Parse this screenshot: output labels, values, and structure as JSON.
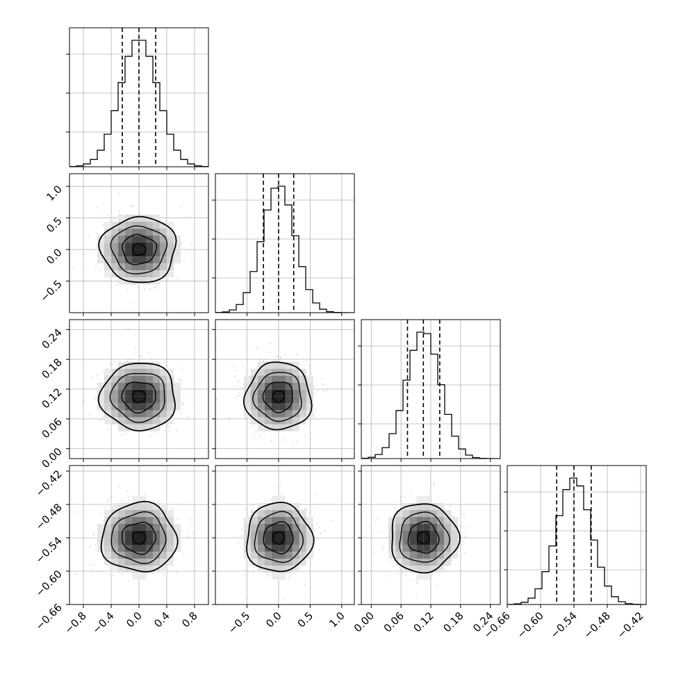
{
  "chart_data": {
    "type": "corner",
    "variables": [
      {
        "range": [
          -1.0,
          1.0
        ],
        "median": 0.0,
        "quantiles": [
          -0.24,
          0.0,
          0.24
        ],
        "sigma": 0.27,
        "ticks": [
          -0.8,
          -0.4,
          0.0,
          0.4,
          0.8
        ],
        "tick_labels": [
          "−0.8",
          "−0.4",
          "0.0",
          "0.4",
          "0.8"
        ],
        "y_ticks": [],
        "y_tick_labels": []
      },
      {
        "range": [
          -1.0,
          1.2
        ],
        "median": 0.0,
        "quantiles": [
          -0.24,
          0.0,
          0.24
        ],
        "sigma": 0.26,
        "ticks": [
          -0.5,
          0.0,
          0.5,
          1.0
        ],
        "tick_labels": [
          "−0.5",
          "0.0",
          "0.5",
          "1.0"
        ],
        "y_ticks": [
          -0.5,
          0.0,
          0.5,
          1.0
        ],
        "y_tick_labels": [
          "−0.5",
          "0.0",
          "0.5",
          "1.0"
        ]
      },
      {
        "range": [
          -0.02,
          0.26
        ],
        "median": 0.105,
        "quantiles": [
          0.073,
          0.105,
          0.138
        ],
        "sigma": 0.034,
        "ticks": [
          0.0,
          0.06,
          0.12,
          0.18,
          0.24
        ],
        "tick_labels": [
          "0.00",
          "0.06",
          "0.12",
          "0.18",
          "0.24"
        ],
        "y_ticks": [
          0.0,
          0.06,
          0.12,
          0.18,
          0.24
        ],
        "y_tick_labels": [
          "0.00",
          "0.06",
          "0.12",
          "0.18",
          "0.24"
        ]
      },
      {
        "range": [
          -0.66,
          -0.41
        ],
        "median": -0.54,
        "quantiles": [
          -0.571,
          -0.54,
          -0.509
        ],
        "sigma": 0.031,
        "ticks": [
          -0.66,
          -0.6,
          -0.54,
          -0.48,
          -0.42
        ],
        "tick_labels": [
          "−0.66",
          "−0.60",
          "−0.54",
          "−0.48",
          "−0.42"
        ],
        "y_ticks": [
          -0.66,
          -0.6,
          -0.54,
          -0.48,
          -0.42
        ],
        "y_tick_labels": [
          "−0.66",
          "−0.60",
          "−0.54",
          "−0.48",
          "−0.42"
        ]
      }
    ],
    "histogram_bins": 20,
    "quantile_style": "dashed",
    "grid": true,
    "contour_levels": 4,
    "samples_per_panel": 500
  }
}
